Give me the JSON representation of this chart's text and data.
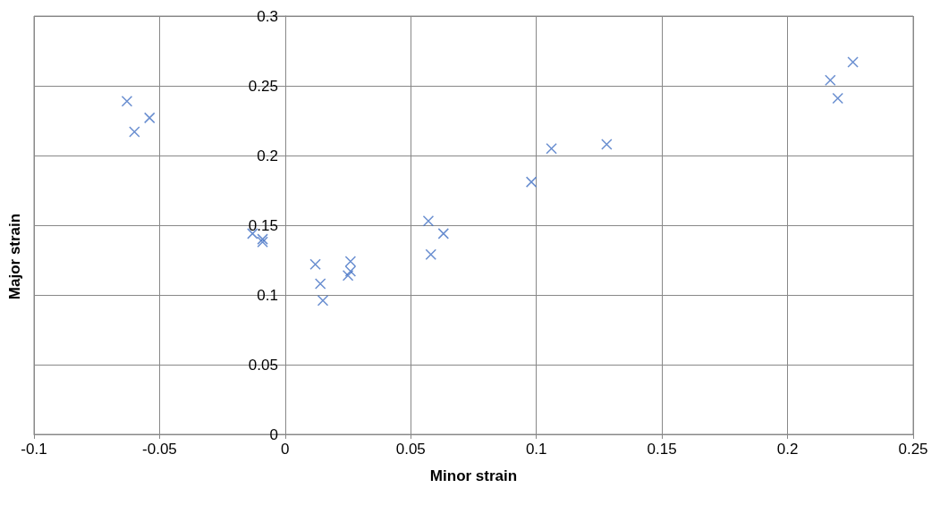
{
  "chart_data": {
    "type": "scatter",
    "xlabel": "Minor strain",
    "ylabel": "Major strain",
    "xlim": [
      -0.1,
      0.25
    ],
    "xticks": [
      -0.1,
      -0.05,
      0,
      0.05,
      0.1,
      0.15,
      0.2,
      0.25
    ],
    "ylim": [
      0,
      0.3
    ],
    "yticks": [
      0,
      0.05,
      0.1,
      0.15,
      0.2,
      0.25,
      0.3
    ],
    "grid": true,
    "marker": "cross",
    "series": [
      {
        "color": "#4472c4",
        "x": [
          -0.063,
          -0.054,
          -0.06,
          -0.013,
          -0.009,
          -0.009,
          0.012,
          0.014,
          0.015,
          0.026,
          0.026,
          0.025,
          0.057,
          0.058,
          0.063,
          0.098,
          0.106,
          0.128,
          0.217,
          0.22,
          0.226
        ],
        "values": [
          0.239,
          0.227,
          0.217,
          0.144,
          0.14,
          0.138,
          0.122,
          0.108,
          0.096,
          0.124,
          0.117,
          0.114,
          0.153,
          0.129,
          0.144,
          0.181,
          0.205,
          0.208,
          0.254,
          0.241,
          0.267
        ]
      }
    ]
  }
}
